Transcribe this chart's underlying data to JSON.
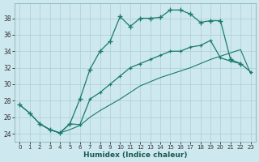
{
  "xlabel": "Humidex (Indice chaleur)",
  "background_color": "#cde8ee",
  "grid_color": "#aecdd6",
  "line_color": "#1a7a6e",
  "xlim": [
    -0.5,
    23.5
  ],
  "ylim": [
    23.0,
    39.8
  ],
  "xticks": [
    0,
    1,
    2,
    3,
    4,
    5,
    6,
    7,
    8,
    9,
    10,
    11,
    12,
    13,
    14,
    15,
    16,
    17,
    18,
    19,
    20,
    21,
    22,
    23
  ],
  "yticks": [
    24,
    26,
    28,
    30,
    32,
    34,
    36,
    38
  ],
  "line1_x": [
    0,
    1,
    2,
    3,
    4,
    5,
    6,
    7,
    8,
    9,
    10,
    11,
    12,
    13,
    14,
    15,
    16,
    17,
    18,
    19,
    20,
    21,
    22
  ],
  "line1_y": [
    27.5,
    26.5,
    25.2,
    24.5,
    24.1,
    25.2,
    28.2,
    31.8,
    34.0,
    35.2,
    38.2,
    37.0,
    38.0,
    38.0,
    38.1,
    39.0,
    39.0,
    38.5,
    37.5,
    37.7,
    37.7,
    33.0,
    32.5
  ],
  "line2_x": [
    2,
    3,
    4,
    5,
    6,
    7,
    8,
    9,
    10,
    11,
    12,
    13,
    14,
    15,
    16,
    17,
    18,
    19,
    20,
    21,
    22,
    23
  ],
  "line2_y": [
    25.2,
    24.5,
    24.1,
    25.2,
    25.1,
    28.2,
    29.0,
    30.0,
    31.0,
    32.0,
    32.5,
    33.0,
    33.5,
    34.0,
    34.0,
    34.5,
    34.7,
    35.3,
    33.2,
    32.8,
    32.5,
    31.5
  ],
  "line3_x": [
    0,
    1,
    2,
    3,
    4,
    5,
    6,
    7,
    8,
    9,
    10,
    11,
    12,
    13,
    14,
    15,
    16,
    17,
    18,
    19,
    20,
    21,
    22,
    23
  ],
  "line3_y": [
    27.5,
    26.5,
    25.2,
    24.5,
    24.1,
    24.5,
    25.0,
    26.0,
    26.8,
    27.5,
    28.2,
    29.0,
    29.8,
    30.3,
    30.8,
    31.2,
    31.6,
    32.0,
    32.5,
    33.0,
    33.4,
    33.8,
    34.2,
    31.3
  ]
}
